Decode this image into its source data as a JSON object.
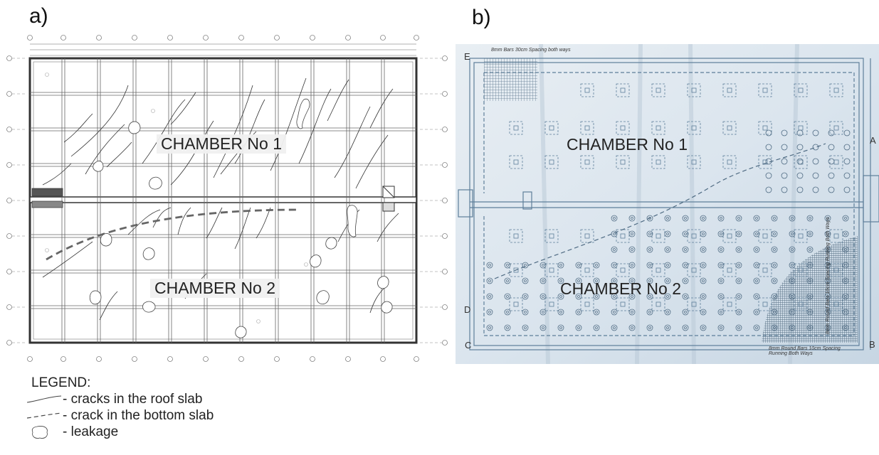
{
  "panels": {
    "a": {
      "label": "a)",
      "chamber1": "CHAMBER No 1",
      "chamber2": "CHAMBER No 2"
    },
    "b": {
      "label": "b)",
      "chamber1": "CHAMBER No 1",
      "chamber2": "CHAMBER No 2",
      "edge_letters": {
        "e": "E",
        "a": "A",
        "d": "D",
        "c": "C",
        "b": "B"
      },
      "note_top": "8mm Bars 30cm Spacing both ways",
      "note_bottom": "8mm Round Bars 10cm Spacing Running Both Ways",
      "note_side": "8mm Round Bars 10cm Spacing Running Both Ways"
    }
  },
  "legend": {
    "title": "LEGEND:",
    "items": [
      {
        "symbol": "solid-line",
        "text": "- cracks in the roof slab"
      },
      {
        "symbol": "dashed-line",
        "text": "- crack in the bottom slab"
      },
      {
        "symbol": "blob-outline",
        "text": "- leakage"
      }
    ]
  },
  "colors": {
    "blueprint": "#5e7f9a",
    "drawing": "#555555"
  }
}
